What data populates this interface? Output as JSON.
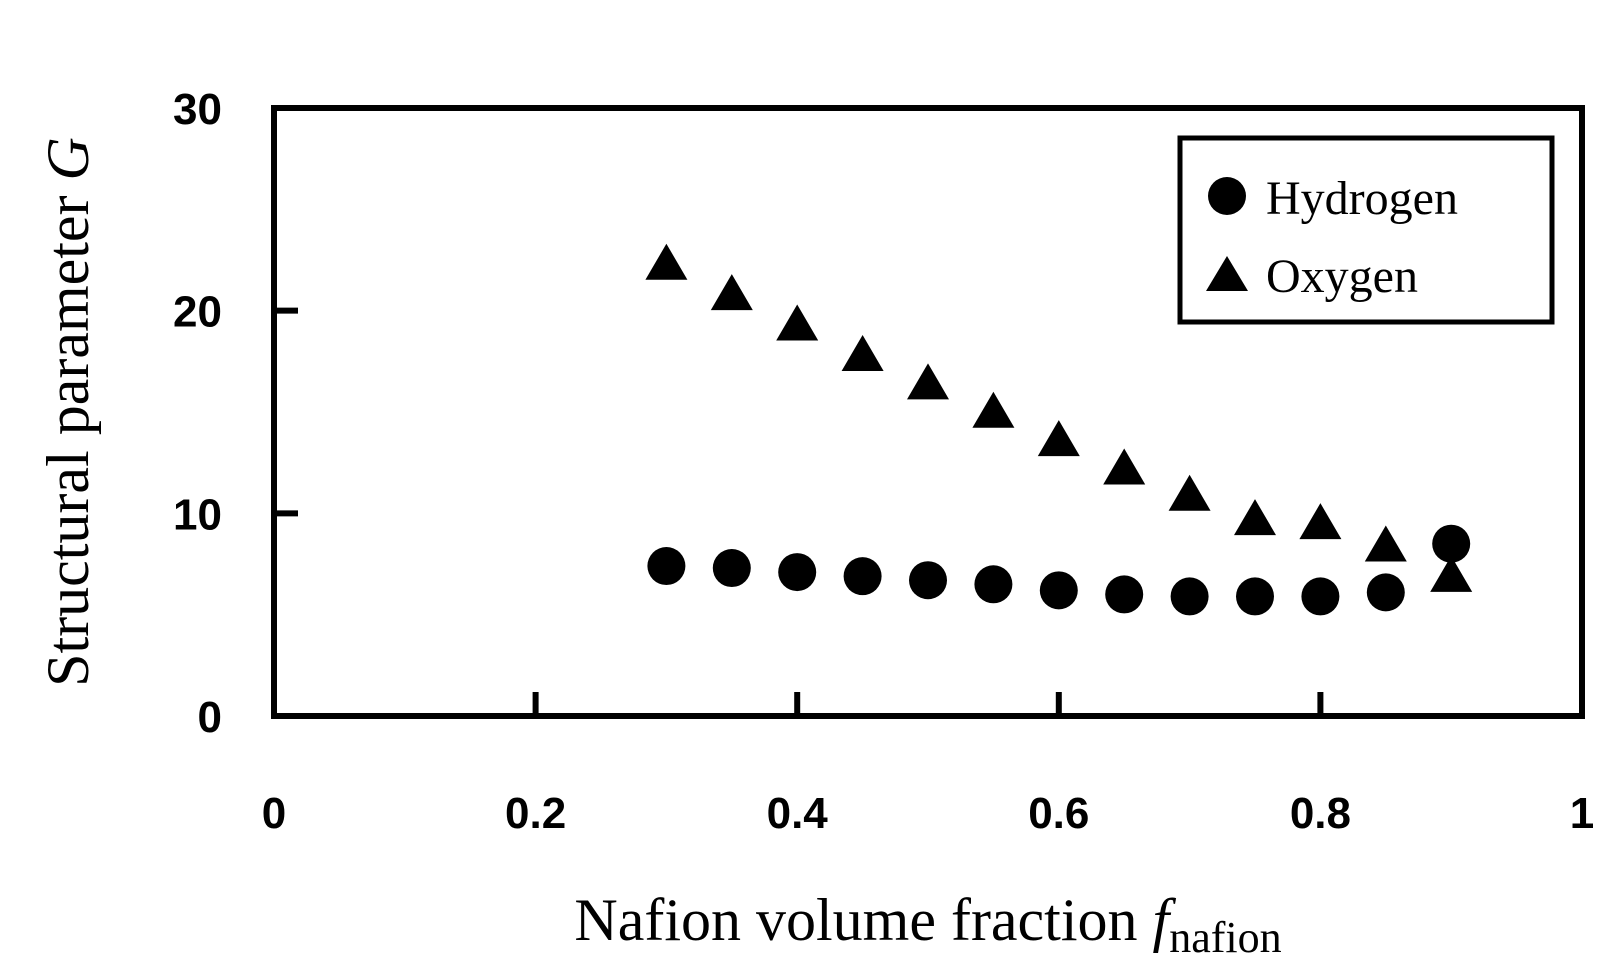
{
  "chart_data": {
    "type": "scatter",
    "title": "",
    "xlabel": {
      "main": "Nafion volume fraction ",
      "italic": "f",
      "sub": "nafion"
    },
    "ylabel": {
      "main": "Structural parameter ",
      "italic": "G"
    },
    "xlim": [
      0,
      1
    ],
    "ylim": [
      0,
      30
    ],
    "xticks": [
      0,
      0.2,
      0.4,
      0.6,
      0.8,
      1
    ],
    "xtick_labels": [
      "0",
      "0.2",
      "0.4",
      "0.6",
      "0.8",
      "1"
    ],
    "yticks": [
      0,
      10,
      20,
      30
    ],
    "ytick_labels": [
      "0",
      "10",
      "20",
      "30"
    ],
    "grid": false,
    "legend_position": "top-right",
    "series": [
      {
        "name": "Hydrogen",
        "marker": "circle",
        "color": "#000000",
        "x": [
          0.3,
          0.35,
          0.4,
          0.45,
          0.5,
          0.55,
          0.6,
          0.65,
          0.7,
          0.75,
          0.8,
          0.85,
          0.9
        ],
        "y": [
          7.4,
          7.3,
          7.1,
          6.9,
          6.7,
          6.5,
          6.2,
          6.0,
          5.9,
          5.9,
          5.9,
          6.1,
          8.5
        ]
      },
      {
        "name": "Oxygen",
        "marker": "triangle",
        "color": "#000000",
        "x": [
          0.3,
          0.35,
          0.4,
          0.45,
          0.5,
          0.55,
          0.6,
          0.65,
          0.7,
          0.75,
          0.8,
          0.85,
          0.9
        ],
        "y": [
          22.2,
          20.7,
          19.2,
          17.7,
          16.3,
          14.9,
          13.5,
          12.1,
          10.8,
          9.6,
          9.4,
          8.3,
          6.8
        ]
      }
    ]
  }
}
